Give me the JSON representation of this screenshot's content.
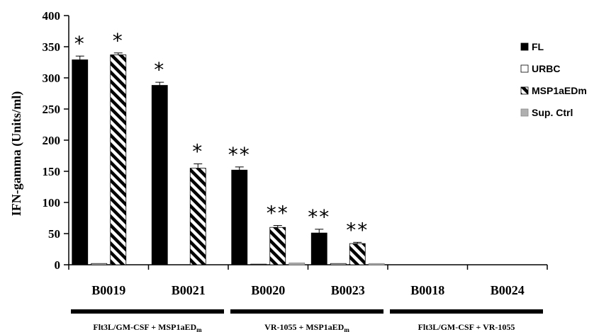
{
  "chart_data": {
    "type": "bar",
    "ylabel": "IFN-gamma (Units/ml)",
    "ylim": [
      0,
      400
    ],
    "yticks": [
      0,
      50,
      100,
      150,
      200,
      250,
      300,
      350,
      400
    ],
    "categories": [
      "B0019",
      "B0021",
      "B0020",
      "B0023",
      "B0018",
      "B0024"
    ],
    "series": [
      {
        "name": "FL",
        "color": "#000000",
        "pattern": "solid",
        "values": [
          329,
          288,
          152,
          51,
          0,
          0
        ],
        "errors": [
          6,
          5,
          5,
          6,
          0,
          0
        ]
      },
      {
        "name": "URBC",
        "color": "#ffffff",
        "pattern": "open",
        "values": [
          2,
          0,
          1,
          2,
          0,
          0
        ],
        "errors": [
          0,
          0,
          0,
          0,
          0,
          0
        ]
      },
      {
        "name": "MSP1aEDm",
        "color": "#000000",
        "pattern": "diagonal-stripes",
        "values": [
          337,
          155,
          60,
          34,
          0,
          0
        ],
        "errors": [
          3,
          7,
          3,
          2,
          0,
          0
        ]
      },
      {
        "name": "Sup. Ctrl",
        "color": "#b0b0b0",
        "pattern": "solid",
        "values": [
          0,
          0,
          3,
          2,
          0,
          0
        ],
        "errors": [
          0,
          0,
          0,
          0,
          0,
          0
        ]
      }
    ],
    "annotations": [
      {
        "category": 0,
        "series": 0,
        "text": "*"
      },
      {
        "category": 0,
        "series": 2,
        "text": "*"
      },
      {
        "category": 1,
        "series": 0,
        "text": "*"
      },
      {
        "category": 1,
        "series": 2,
        "text": "*"
      },
      {
        "category": 2,
        "series": 0,
        "text": "**"
      },
      {
        "category": 2,
        "series": 2,
        "text": "**"
      },
      {
        "category": 3,
        "series": 0,
        "text": "**"
      },
      {
        "category": 3,
        "series": 2,
        "text": "**"
      }
    ],
    "groups": [
      {
        "label": "Flt3L/GM-CSF + MSP1aED",
        "subscript": "m",
        "categories": [
          0,
          1
        ]
      },
      {
        "label": "VR-1055 + MSP1aED",
        "subscript": "m",
        "categories": [
          2,
          3
        ]
      },
      {
        "label": "Flt3L/GM-CSF + VR-1055",
        "subscript": "",
        "categories": [
          4,
          5
        ]
      }
    ],
    "legend_position": "right",
    "grid": false
  }
}
